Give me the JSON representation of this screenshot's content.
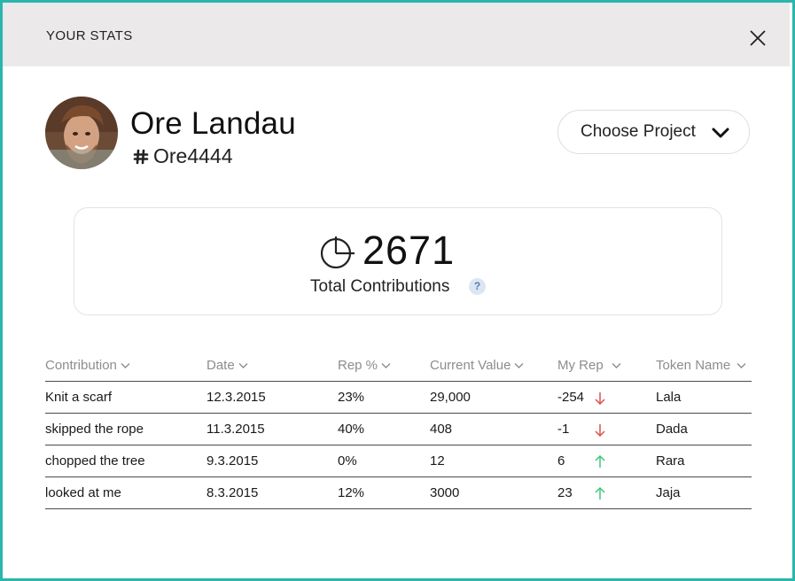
{
  "header": {
    "title": "YOUR STATS"
  },
  "user": {
    "name": "Ore Landau",
    "handle": "Ore4444"
  },
  "project_select": {
    "label": "Choose Project"
  },
  "stats": {
    "total_contributions": "2671",
    "total_label": "Total Contributions",
    "help": "?"
  },
  "table": {
    "columns": [
      {
        "label": "Contribution"
      },
      {
        "label": "Date"
      },
      {
        "label": "Rep %"
      },
      {
        "label": "Current Value"
      },
      {
        "label": "My Rep"
      },
      {
        "label": "Token Name"
      }
    ],
    "rows": [
      {
        "contribution": "Knit a scarf",
        "date": "12.3.2015",
        "rep_pct": "23%",
        "current_value": "29,000",
        "my_rep": "-254",
        "trend": "down",
        "token": "Lala"
      },
      {
        "contribution": "skipped the rope",
        "date": "11.3.2015",
        "rep_pct": "40%",
        "current_value": "408",
        "my_rep": "-1",
        "trend": "down",
        "token": "Dada"
      },
      {
        "contribution": "chopped the tree",
        "date": "9.3.2015",
        "rep_pct": "0%",
        "current_value": "12",
        "my_rep": "6",
        "trend": "up",
        "token": "Rara"
      },
      {
        "contribution": "looked at me",
        "date": "8.3.2015",
        "rep_pct": "12%",
        "current_value": "3000",
        "my_rep": "23",
        "trend": "up",
        "token": "Jaja"
      }
    ]
  },
  "colors": {
    "frame_border": "#2bb5ad",
    "header_bg": "#ebe9e9",
    "trend_down": "#d9534f",
    "trend_up": "#3ec878"
  }
}
